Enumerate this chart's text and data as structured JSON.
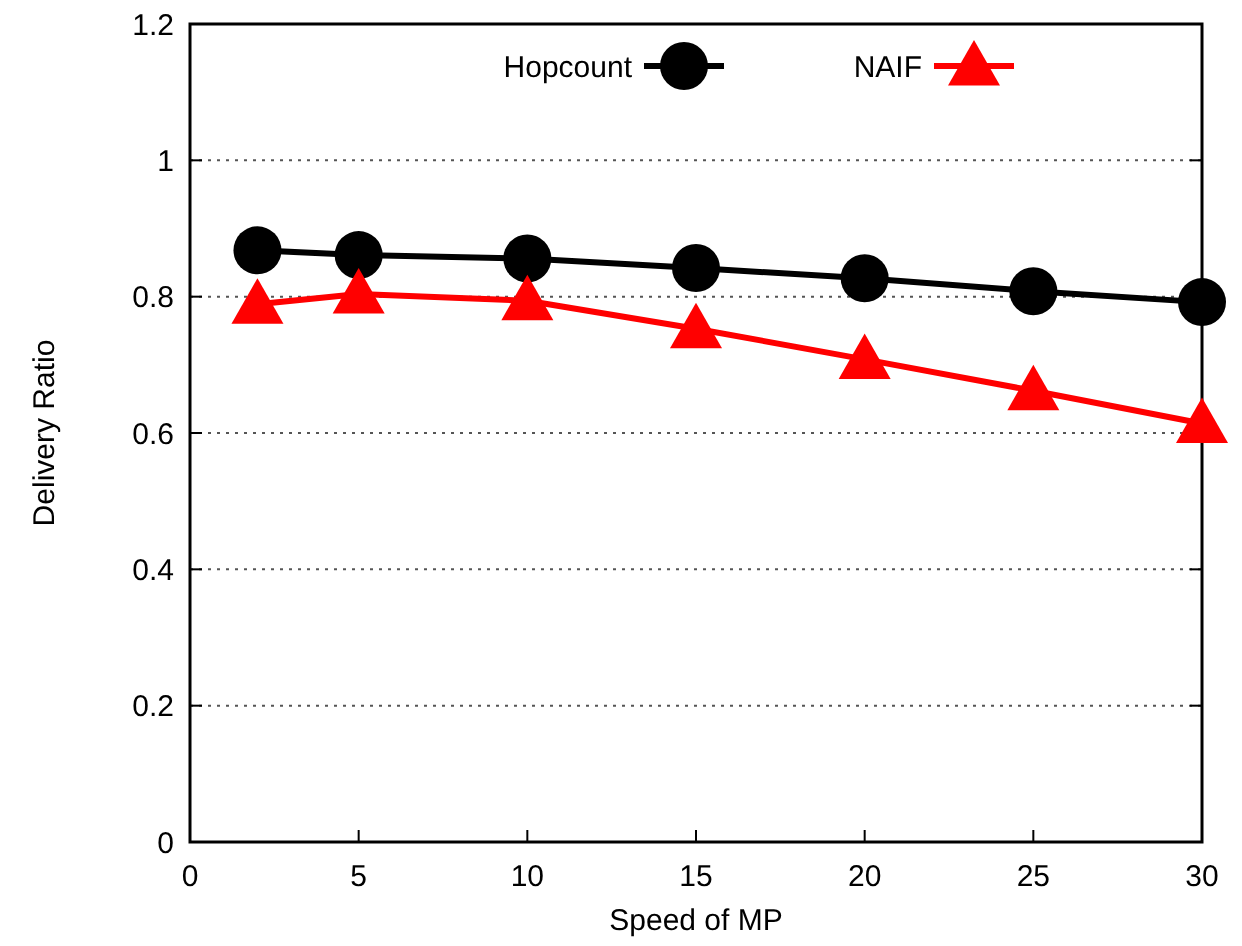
{
  "chart_data": {
    "type": "line",
    "xlabel": "Speed of MP",
    "ylabel": "Delivery Ratio",
    "x": [
      2,
      5,
      10,
      15,
      20,
      25,
      30
    ],
    "series": [
      {
        "name": "Hopcount",
        "color": "#000000",
        "marker": "circle",
        "values": [
          0.868,
          0.861,
          0.856,
          0.842,
          0.827,
          0.808,
          0.792
        ]
      },
      {
        "name": "NAIF",
        "color": "#ff0000",
        "marker": "triangle",
        "values": [
          0.789,
          0.804,
          0.794,
          0.753,
          0.708,
          0.662,
          0.614
        ]
      }
    ],
    "xlim": [
      0,
      30
    ],
    "xticks": [
      0,
      5,
      10,
      15,
      20,
      25,
      30
    ],
    "ylim": [
      0,
      1.2
    ],
    "yticks": [
      0,
      0.2,
      0.4,
      0.6,
      0.8,
      1,
      1.2
    ],
    "grid": "y",
    "legend": "top"
  }
}
